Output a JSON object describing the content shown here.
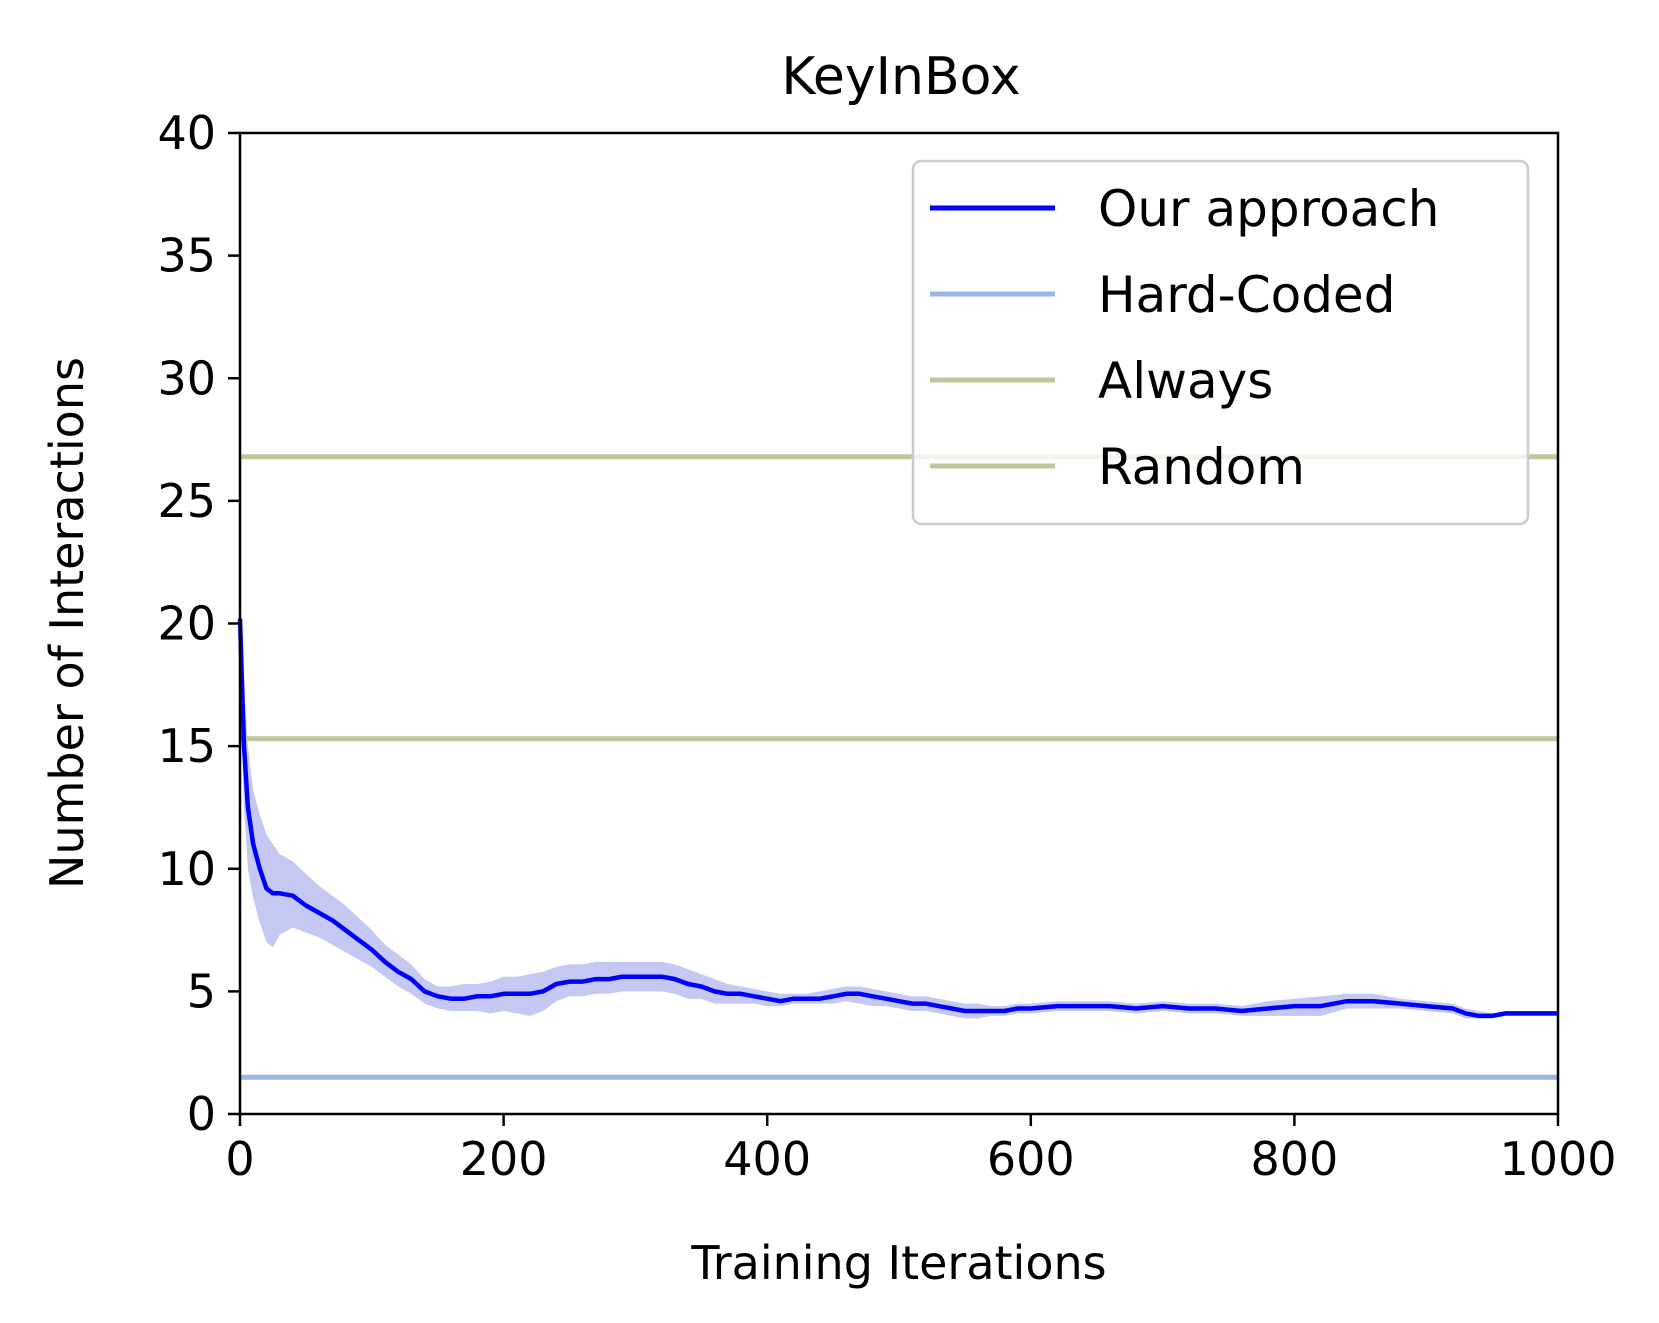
{
  "chart_data": {
    "type": "line",
    "title": "KeyInBox",
    "xlabel": "Training Iterations",
    "ylabel": "Number of Interactions",
    "xlim": [
      0,
      1000
    ],
    "ylim": [
      0,
      40
    ],
    "xticks": [
      0,
      200,
      400,
      600,
      800,
      1000
    ],
    "yticks": [
      0,
      5,
      10,
      15,
      20,
      25,
      30,
      35,
      40
    ],
    "grid": false,
    "legend_position": "top-right",
    "series": [
      {
        "name": "Our approach",
        "kind": "line",
        "color": "#0000ff",
        "x": [
          0,
          3,
          6,
          10,
          15,
          20,
          25,
          30,
          40,
          50,
          60,
          70,
          80,
          90,
          100,
          110,
          120,
          130,
          140,
          150,
          160,
          170,
          180,
          190,
          200,
          210,
          220,
          230,
          240,
          250,
          260,
          270,
          280,
          290,
          300,
          310,
          320,
          330,
          340,
          350,
          360,
          370,
          380,
          390,
          400,
          410,
          420,
          430,
          440,
          450,
          460,
          470,
          480,
          490,
          500,
          510,
          520,
          530,
          540,
          550,
          560,
          570,
          580,
          590,
          600,
          620,
          640,
          660,
          680,
          700,
          720,
          740,
          760,
          780,
          800,
          820,
          840,
          860,
          880,
          900,
          920,
          930,
          940,
          950,
          960,
          970,
          980,
          990,
          1000
        ],
        "y": [
          20.2,
          15.0,
          12.5,
          11.0,
          10.0,
          9.2,
          9.0,
          9.0,
          8.9,
          8.5,
          8.2,
          7.9,
          7.5,
          7.1,
          6.7,
          6.2,
          5.8,
          5.5,
          5.0,
          4.8,
          4.7,
          4.7,
          4.8,
          4.8,
          4.9,
          4.9,
          4.9,
          5.0,
          5.3,
          5.4,
          5.4,
          5.5,
          5.5,
          5.6,
          5.6,
          5.6,
          5.6,
          5.5,
          5.3,
          5.2,
          5.0,
          4.9,
          4.9,
          4.8,
          4.7,
          4.6,
          4.7,
          4.7,
          4.7,
          4.8,
          4.9,
          4.9,
          4.8,
          4.7,
          4.6,
          4.5,
          4.5,
          4.4,
          4.3,
          4.2,
          4.2,
          4.2,
          4.2,
          4.3,
          4.3,
          4.4,
          4.4,
          4.4,
          4.3,
          4.4,
          4.3,
          4.3,
          4.2,
          4.3,
          4.4,
          4.4,
          4.6,
          4.6,
          4.5,
          4.4,
          4.3,
          4.1,
          4.0,
          4.0,
          4.1,
          4.1,
          4.1,
          4.1,
          4.1
        ],
        "band_low": [
          18.0,
          12.5,
          10.0,
          8.8,
          7.8,
          7.0,
          6.8,
          7.3,
          7.6,
          7.4,
          7.2,
          6.9,
          6.6,
          6.3,
          6.0,
          5.6,
          5.2,
          4.9,
          4.5,
          4.3,
          4.2,
          4.2,
          4.2,
          4.1,
          4.2,
          4.1,
          4.0,
          4.2,
          4.6,
          4.8,
          4.8,
          4.9,
          4.9,
          5.0,
          5.0,
          5.0,
          5.0,
          4.9,
          4.7,
          4.7,
          4.5,
          4.5,
          4.5,
          4.5,
          4.4,
          4.4,
          4.5,
          4.5,
          4.5,
          4.5,
          4.6,
          4.5,
          4.4,
          4.4,
          4.3,
          4.2,
          4.2,
          4.1,
          4.0,
          3.9,
          3.9,
          4.0,
          4.0,
          4.1,
          4.1,
          4.2,
          4.2,
          4.2,
          4.1,
          4.2,
          4.1,
          4.1,
          4.0,
          4.0,
          4.0,
          4.0,
          4.3,
          4.3,
          4.3,
          4.2,
          4.1,
          3.9,
          3.9,
          3.9,
          4.0,
          4.0,
          4.0,
          4.0,
          4.0
        ],
        "band_high": [
          20.4,
          17.3,
          15.0,
          13.2,
          12.2,
          11.4,
          11.0,
          10.6,
          10.3,
          9.8,
          9.3,
          8.9,
          8.5,
          8.0,
          7.5,
          6.9,
          6.5,
          6.1,
          5.5,
          5.2,
          5.2,
          5.3,
          5.3,
          5.4,
          5.6,
          5.6,
          5.7,
          5.8,
          6.0,
          6.1,
          6.1,
          6.2,
          6.2,
          6.2,
          6.2,
          6.2,
          6.2,
          6.1,
          5.9,
          5.7,
          5.5,
          5.3,
          5.2,
          5.1,
          5.0,
          4.9,
          4.9,
          4.9,
          5.0,
          5.1,
          5.2,
          5.2,
          5.1,
          5.0,
          4.9,
          4.8,
          4.8,
          4.7,
          4.6,
          4.5,
          4.5,
          4.4,
          4.4,
          4.5,
          4.5,
          4.6,
          4.6,
          4.6,
          4.5,
          4.6,
          4.5,
          4.5,
          4.4,
          4.6,
          4.7,
          4.8,
          4.9,
          4.9,
          4.7,
          4.6,
          4.5,
          4.3,
          4.2,
          4.1,
          4.2,
          4.2,
          4.2,
          4.2,
          4.2
        ],
        "band_color": "#c4c8f2"
      },
      {
        "name": "Hard-Coded",
        "kind": "hline",
        "color": "#9ab4e6",
        "value": 1.5
      },
      {
        "name": "Always",
        "kind": "hline",
        "color": "#bcc89a",
        "value": 15.3
      },
      {
        "name": "Random",
        "kind": "hline",
        "color": "#bcc89a",
        "value": 26.8
      }
    ]
  }
}
